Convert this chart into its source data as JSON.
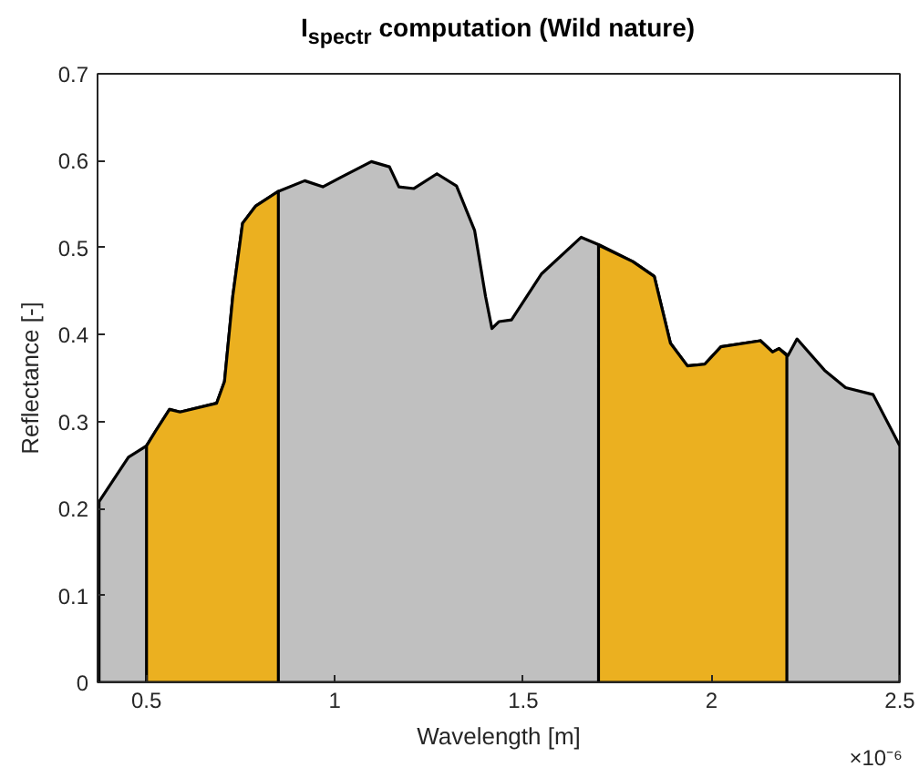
{
  "chart_data": {
    "type": "area",
    "title": "I$_{spectr}$ computation (Wild nature)",
    "xlabel": "Wavelength [m]",
    "ylabel": "Reflectance [-]",
    "annotations": [
      "×10⁻⁶"
    ],
    "xlim": [
      0.37,
      2.5
    ],
    "xticks": [
      0.5,
      1,
      1.5,
      2,
      2.5
    ],
    "ylim": [
      0,
      0.7
    ],
    "yticks": [
      0,
      0.1,
      0.2,
      0.3,
      0.4,
      0.5,
      0.6,
      0.7
    ],
    "grid": false,
    "series": [
      {
        "color": "#c0c0c0",
        "x": [
          0.374,
          0.452,
          0.5,
          0.524,
          0.561,
          0.589,
          0.686,
          0.707,
          0.729,
          0.755,
          0.79,
          0.852,
          0.92,
          0.968,
          1.016,
          1.097,
          1.145,
          1.17,
          1.21,
          1.271,
          1.323,
          1.371,
          1.4,
          1.417,
          1.436,
          1.469,
          1.549,
          1.654,
          1.703,
          1.791,
          1.848,
          1.891,
          1.936,
          1.982,
          2.025,
          2.13,
          2.162,
          2.179,
          2.203,
          2.227,
          2.3,
          2.356,
          2.429,
          2.5
        ],
        "values": [
          0.208,
          0.259,
          0.272,
          0.289,
          0.314,
          0.311,
          0.321,
          0.346,
          0.444,
          0.528,
          0.548,
          0.565,
          0.577,
          0.57,
          0.581,
          0.599,
          0.593,
          0.57,
          0.568,
          0.585,
          0.571,
          0.52,
          0.444,
          0.407,
          0.415,
          0.417,
          0.47,
          0.512,
          0.503,
          0.484,
          0.467,
          0.39,
          0.364,
          0.366,
          0.386,
          0.393,
          0.38,
          0.384,
          0.376,
          0.395,
          0.359,
          0.339,
          0.331,
          0.272
        ]
      },
      {
        "color": "#ebb020",
        "x": [
          0.5,
          0.524,
          0.561,
          0.589,
          0.686,
          0.707,
          0.729,
          0.755,
          0.79,
          0.85
        ],
        "values": [
          0.272,
          0.289,
          0.314,
          0.311,
          0.321,
          0.346,
          0.444,
          0.528,
          0.548,
          0.565
        ]
      },
      {
        "color": "#ebb020",
        "x": [
          1.7,
          1.791,
          1.848,
          1.891,
          1.936,
          1.982,
          2.025,
          2.13,
          2.162,
          2.179,
          2.2
        ],
        "values": [
          0.503,
          0.484,
          0.467,
          0.39,
          0.364,
          0.366,
          0.386,
          0.393,
          0.38,
          0.384,
          0.376
        ]
      }
    ]
  }
}
